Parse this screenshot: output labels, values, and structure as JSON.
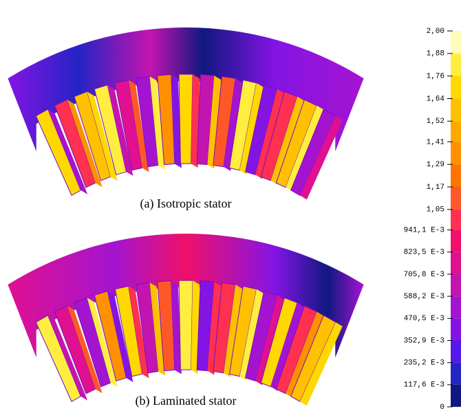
{
  "panels": [
    {
      "caption": "(a) Isotropic stator"
    },
    {
      "caption": "(b) Laminated stator"
    }
  ],
  "colorbar": {
    "ticks": [
      {
        "value": 2.0,
        "label": "2,00"
      },
      {
        "value": 1.88,
        "label": "1,88"
      },
      {
        "value": 1.76,
        "label": "1,76"
      },
      {
        "value": 1.64,
        "label": "1,64"
      },
      {
        "value": 1.52,
        "label": "1,52"
      },
      {
        "value": 1.41,
        "label": "1,41"
      },
      {
        "value": 1.29,
        "label": "1,29"
      },
      {
        "value": 1.17,
        "label": "1,17"
      },
      {
        "value": 1.05,
        "label": "1,05"
      },
      {
        "value": 0.9411,
        "label": "941,1 E-3"
      },
      {
        "value": 0.8235,
        "label": "823,5 E-3"
      },
      {
        "value": 0.7058,
        "label": "705,8 E-3"
      },
      {
        "value": 0.5882,
        "label": "588,2 E-3"
      },
      {
        "value": 0.4705,
        "label": "470,5 E-3"
      },
      {
        "value": 0.3529,
        "label": "352,9 E-3"
      },
      {
        "value": 0.2352,
        "label": "235,2 E-3"
      },
      {
        "value": 0.1176,
        "label": "117,6 E-3"
      },
      {
        "value": 0,
        "label": "0"
      }
    ],
    "colors": [
      "#fffcb8",
      "#ffee40",
      "#ffd800",
      "#ffc000",
      "#ffa800",
      "#ff9000",
      "#ff7400",
      "#ff5828",
      "#ff3050",
      "#f0106a",
      "#e01090",
      "#c414b0",
      "#a414d0",
      "#8414e4",
      "#5418e8",
      "#2424c4",
      "#101880"
    ]
  }
}
